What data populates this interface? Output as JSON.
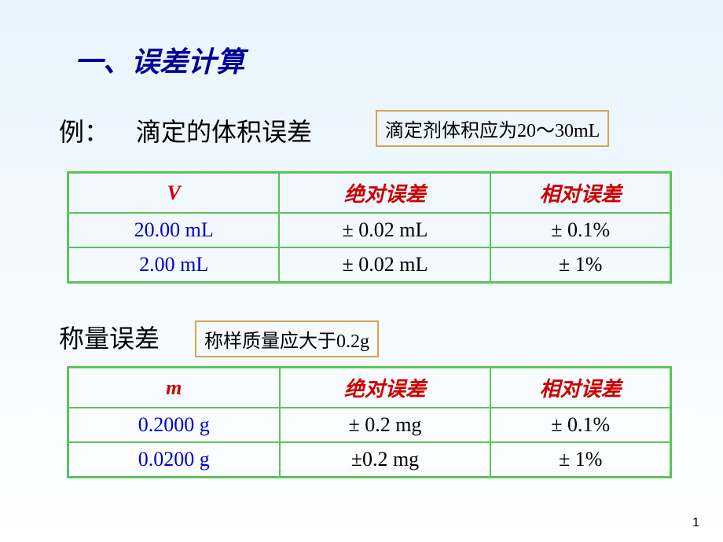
{
  "title": "一、误差计算",
  "example": {
    "label": "例：",
    "text": "滴定的体积误差",
    "note": "滴定剂体积应为20～30mL"
  },
  "table1": {
    "headers": {
      "col1": "V",
      "col2": "绝对误差",
      "col3": "相对误差"
    },
    "rows": [
      {
        "col1": "20.00 mL",
        "col2": "± 0.02 mL",
        "col3": "± 0.1%"
      },
      {
        "col1": "2.00 mL",
        "col2": "± 0.02 mL",
        "col3": "± 1%"
      }
    ]
  },
  "weight": {
    "label": "称量误差",
    "note": "称样质量应大于0.2g"
  },
  "table2": {
    "headers": {
      "col1": "m",
      "col2": "绝对误差",
      "col3": "相对误差"
    },
    "rows": [
      {
        "col1": "0.2000 g",
        "col2": "± 0.2 mg",
        "col3": "± 0.1%"
      },
      {
        "col1": "0.0200 g",
        "col2": "±0.2 mg",
        "col3": "± 1%"
      }
    ]
  },
  "pageNumber": "1",
  "styling": {
    "backgroundGradientTop": "#e8f4fd",
    "backgroundGradientBottom": "#ffffff",
    "titleColor": "#000099",
    "tableBorderColor": "#5bc45b",
    "noteBorderColor": "#d4a84b",
    "redTextColor": "#cc0000",
    "blueTextColor": "#0000cc",
    "titleFontSize": 36,
    "exampleFontSize": 32,
    "noteFontSize": 24,
    "tableCellFontSize": 26,
    "tableHeaderFontSize": 28
  }
}
